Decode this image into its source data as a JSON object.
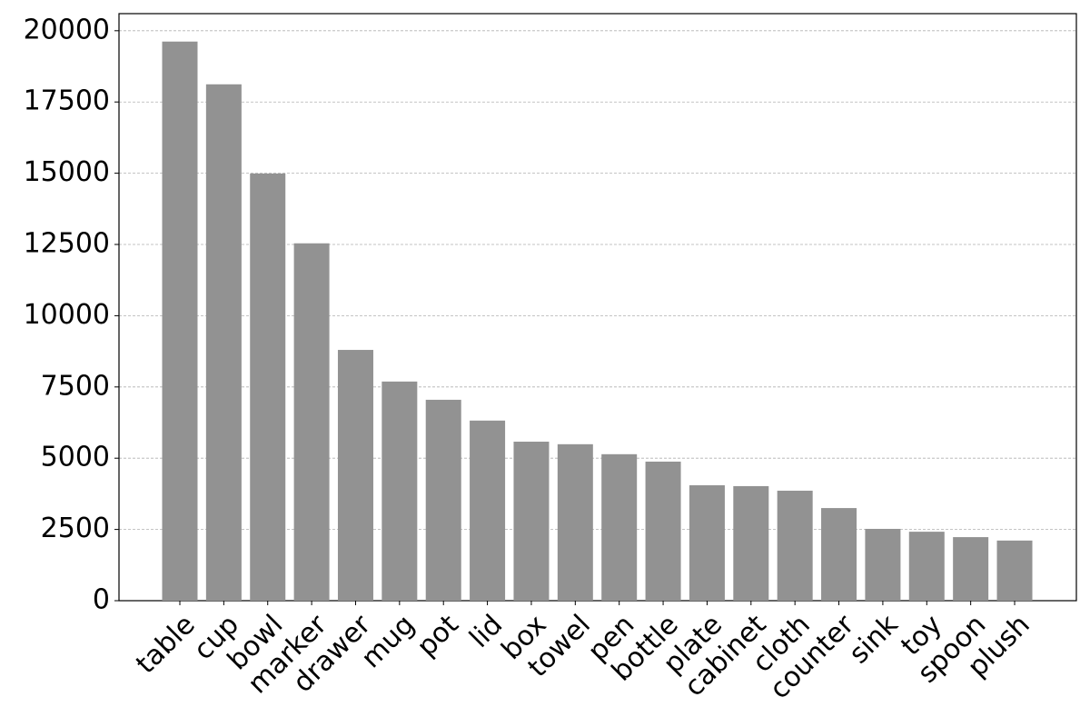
{
  "chart_data": {
    "type": "bar",
    "categories": [
      "table",
      "cup",
      "bowl",
      "marker",
      "drawer",
      "mug",
      "pot",
      "lid",
      "box",
      "towel",
      "pen",
      "bottle",
      "plate",
      "cabinet",
      "cloth",
      "counter",
      "sink",
      "toy",
      "spoon",
      "plush"
    ],
    "values": [
      19620,
      18120,
      14990,
      12540,
      8800,
      7690,
      7050,
      6320,
      5580,
      5490,
      5140,
      4880,
      4050,
      4020,
      3860,
      3250,
      2520,
      2420,
      2230,
      2110
    ],
    "color": "#929292",
    "ylim": [
      0,
      20600
    ],
    "yticks": [
      0,
      2500,
      5000,
      7500,
      10000,
      12500,
      15000,
      17500,
      20000
    ],
    "grid": true
  }
}
